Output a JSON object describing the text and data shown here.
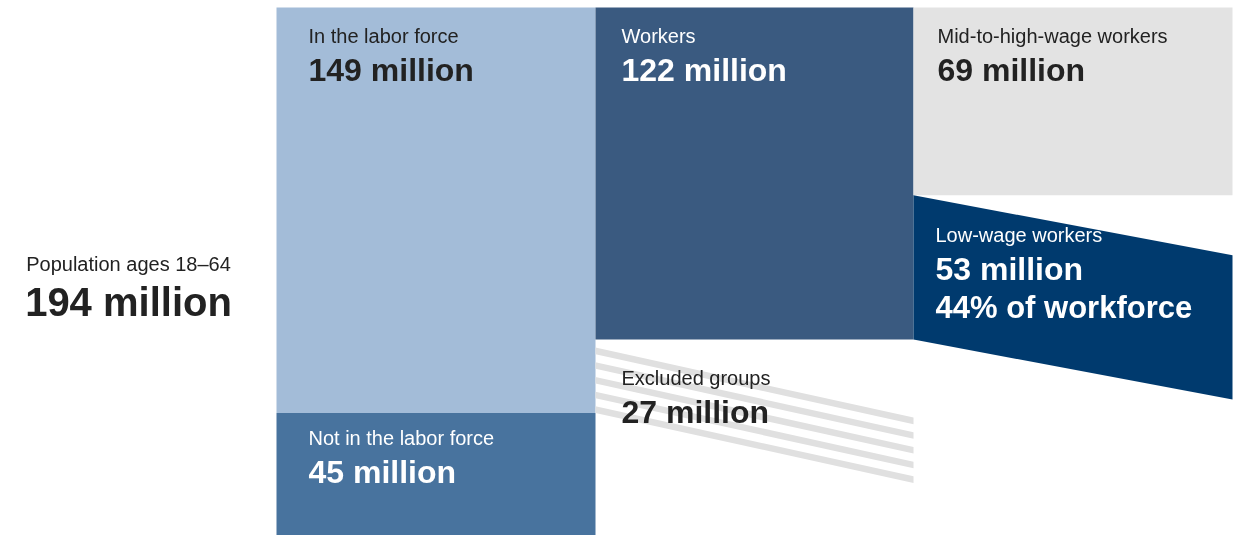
{
  "chart_data": {
    "type": "other",
    "categories": [
      "Population ages 18–64",
      "In the labor force",
      "Not in the labor force",
      "Workers",
      "Excluded groups",
      "Mid-to-high-wage workers",
      "Low-wage workers"
    ],
    "values": [
      194,
      149,
      45,
      122,
      27,
      69,
      53
    ],
    "value_labels": [
      "194 million",
      "149 million",
      "45 million",
      "122 million",
      "27 million",
      "69 million",
      "53 million"
    ],
    "colors": [
      null,
      "#a3bcd8",
      "#48739e",
      "#3a5a80",
      "#e0e0e0",
      "#e3e3e3",
      "#003a6e"
    ],
    "annotations": [
      "44% of workforce"
    ]
  }
}
